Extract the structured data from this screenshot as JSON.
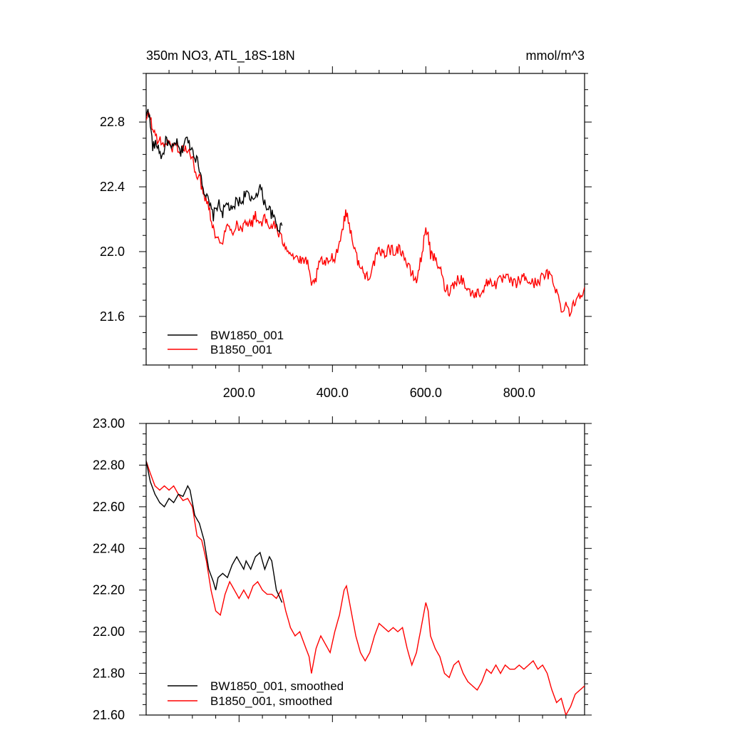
{
  "chart_data": [
    {
      "type": "line",
      "title_left": "350m NO3, ATL_18S-18N",
      "title_right": "mmol/m^3",
      "xlim": [
        1,
        940
      ],
      "ylim": [
        21.3,
        23.1
      ],
      "x_ticks": [
        200,
        400,
        600,
        800
      ],
      "x_tick_labels": [
        "200.0",
        "400.0",
        "600.0",
        "800.0"
      ],
      "y_ticks": [
        21.6,
        22.0,
        22.4,
        22.8
      ],
      "y_tick_labels": [
        "21.6",
        "22.0",
        "22.4",
        "22.8"
      ],
      "legend_position": "bottom-left",
      "noisy": true,
      "series": [
        {
          "name": "BW1850_001",
          "color": "#000000",
          "points": [
            [
              1,
              22.82
            ],
            [
              5,
              22.9
            ],
            [
              10,
              22.78
            ],
            [
              15,
              22.65
            ],
            [
              25,
              22.66
            ],
            [
              35,
              22.58
            ],
            [
              45,
              22.7
            ],
            [
              55,
              22.62
            ],
            [
              65,
              22.68
            ],
            [
              75,
              22.6
            ],
            [
              85,
              22.7
            ],
            [
              95,
              22.66
            ],
            [
              105,
              22.6
            ],
            [
              115,
              22.52
            ],
            [
              125,
              22.38
            ],
            [
              135,
              22.3
            ],
            [
              145,
              22.22
            ],
            [
              155,
              22.3
            ],
            [
              165,
              22.24
            ],
            [
              175,
              22.3
            ],
            [
              185,
              22.24
            ],
            [
              195,
              22.32
            ],
            [
              205,
              22.3
            ],
            [
              215,
              22.38
            ],
            [
              225,
              22.3
            ],
            [
              235,
              22.35
            ],
            [
              245,
              22.4
            ],
            [
              255,
              22.3
            ],
            [
              265,
              22.26
            ],
            [
              275,
              22.2
            ],
            [
              285,
              22.14
            ],
            [
              292,
              22.16
            ]
          ]
        },
        {
          "name": "B1850_001",
          "color": "#ff0000",
          "points": [
            [
              1,
              22.8
            ],
            [
              8,
              22.86
            ],
            [
              15,
              22.75
            ],
            [
              25,
              22.7
            ],
            [
              35,
              22.66
            ],
            [
              45,
              22.68
            ],
            [
              55,
              22.64
            ],
            [
              65,
              22.66
            ],
            [
              75,
              22.62
            ],
            [
              85,
              22.64
            ],
            [
              95,
              22.6
            ],
            [
              105,
              22.52
            ],
            [
              115,
              22.45
            ],
            [
              125,
              22.36
            ],
            [
              135,
              22.28
            ],
            [
              145,
              22.15
            ],
            [
              155,
              22.06
            ],
            [
              165,
              22.08
            ],
            [
              175,
              22.16
            ],
            [
              185,
              22.12
            ],
            [
              195,
              22.18
            ],
            [
              205,
              22.13
            ],
            [
              215,
              22.2
            ],
            [
              225,
              22.16
            ],
            [
              235,
              22.22
            ],
            [
              245,
              22.18
            ],
            [
              255,
              22.2
            ],
            [
              265,
              22.14
            ],
            [
              275,
              22.18
            ],
            [
              285,
              22.1
            ],
            [
              295,
              22.06
            ],
            [
              305,
              22.02
            ],
            [
              315,
              21.98
            ],
            [
              325,
              21.96
            ],
            [
              335,
              21.93
            ],
            [
              345,
              21.95
            ],
            [
              355,
              21.78
            ],
            [
              365,
              21.84
            ],
            [
              375,
              21.95
            ],
            [
              385,
              21.92
            ],
            [
              395,
              21.96
            ],
            [
              405,
              21.97
            ],
            [
              415,
              22.05
            ],
            [
              425,
              22.2
            ],
            [
              430,
              22.24
            ],
            [
              440,
              22.12
            ],
            [
              450,
              21.98
            ],
            [
              460,
              21.9
            ],
            [
              470,
              21.85
            ],
            [
              480,
              21.86
            ],
            [
              490,
              21.94
            ],
            [
              500,
              22.0
            ],
            [
              510,
              21.98
            ],
            [
              520,
              22.02
            ],
            [
              530,
              22.0
            ],
            [
              540,
              22.02
            ],
            [
              550,
              22.0
            ],
            [
              560,
              21.92
            ],
            [
              570,
              21.86
            ],
            [
              580,
              21.82
            ],
            [
              590,
              21.96
            ],
            [
              600,
              22.14
            ],
            [
              605,
              22.12
            ],
            [
              610,
              21.98
            ],
            [
              620,
              21.95
            ],
            [
              630,
              21.9
            ],
            [
              640,
              21.78
            ],
            [
              650,
              21.76
            ],
            [
              660,
              21.8
            ],
            [
              670,
              21.84
            ],
            [
              680,
              21.82
            ],
            [
              690,
              21.76
            ],
            [
              700,
              21.74
            ],
            [
              710,
              21.74
            ],
            [
              720,
              21.76
            ],
            [
              730,
              21.8
            ],
            [
              740,
              21.82
            ],
            [
              750,
              21.8
            ],
            [
              760,
              21.82
            ],
            [
              770,
              21.84
            ],
            [
              780,
              21.82
            ],
            [
              790,
              21.8
            ],
            [
              800,
              21.82
            ],
            [
              810,
              21.84
            ],
            [
              820,
              21.82
            ],
            [
              830,
              21.8
            ],
            [
              840,
              21.82
            ],
            [
              850,
              21.84
            ],
            [
              860,
              21.86
            ],
            [
              870,
              21.84
            ],
            [
              880,
              21.76
            ],
            [
              890,
              21.64
            ],
            [
              900,
              21.68
            ],
            [
              910,
              21.62
            ],
            [
              920,
              21.7
            ],
            [
              930,
              21.74
            ],
            [
              940,
              21.78
            ]
          ]
        }
      ]
    },
    {
      "type": "line",
      "title_left": "",
      "title_right": "",
      "xlim": [
        1,
        940
      ],
      "ylim": [
        21.6,
        23.0
      ],
      "x_ticks": [
        200,
        400,
        600,
        800
      ],
      "x_tick_labels": [
        "",
        "",
        "",
        ""
      ],
      "y_ticks": [
        21.6,
        21.8,
        22.0,
        22.2,
        22.4,
        22.6,
        22.8,
        23.0
      ],
      "y_tick_labels": [
        "21.60",
        "21.80",
        "22.00",
        "22.20",
        "22.40",
        "22.60",
        "22.80",
        "23.00"
      ],
      "legend_position": "bottom-left",
      "noisy": false,
      "series": [
        {
          "name": "BW1850_001, smoothed",
          "color": "#000000",
          "points": [
            [
              1,
              22.82
            ],
            [
              10,
              22.72
            ],
            [
              20,
              22.66
            ],
            [
              30,
              22.62
            ],
            [
              40,
              22.6
            ],
            [
              50,
              22.64
            ],
            [
              60,
              22.62
            ],
            [
              70,
              22.66
            ],
            [
              80,
              22.65
            ],
            [
              90,
              22.7
            ],
            [
              95,
              22.68
            ],
            [
              105,
              22.56
            ],
            [
              115,
              22.52
            ],
            [
              125,
              22.44
            ],
            [
              135,
              22.3
            ],
            [
              145,
              22.24
            ],
            [
              150,
              22.2
            ],
            [
              155,
              22.26
            ],
            [
              165,
              22.28
            ],
            [
              175,
              22.26
            ],
            [
              185,
              22.32
            ],
            [
              195,
              22.36
            ],
            [
              200,
              22.34
            ],
            [
              210,
              22.3
            ],
            [
              215,
              22.34
            ],
            [
              225,
              22.3
            ],
            [
              235,
              22.36
            ],
            [
              245,
              22.38
            ],
            [
              255,
              22.3
            ],
            [
              265,
              22.36
            ],
            [
              270,
              22.34
            ],
            [
              280,
              22.2
            ],
            [
              292,
              22.14
            ]
          ]
        },
        {
          "name": "B1850_001, smoothed",
          "color": "#ff0000",
          "points": [
            [
              1,
              22.82
            ],
            [
              10,
              22.76
            ],
            [
              20,
              22.7
            ],
            [
              30,
              22.68
            ],
            [
              40,
              22.7
            ],
            [
              50,
              22.68
            ],
            [
              60,
              22.7
            ],
            [
              70,
              22.66
            ],
            [
              80,
              22.63
            ],
            [
              90,
              22.64
            ],
            [
              100,
              22.6
            ],
            [
              110,
              22.46
            ],
            [
              120,
              22.44
            ],
            [
              130,
              22.34
            ],
            [
              140,
              22.2
            ],
            [
              150,
              22.1
            ],
            [
              160,
              22.08
            ],
            [
              170,
              22.18
            ],
            [
              180,
              22.24
            ],
            [
              190,
              22.2
            ],
            [
              200,
              22.16
            ],
            [
              210,
              22.2
            ],
            [
              220,
              22.16
            ],
            [
              230,
              22.22
            ],
            [
              240,
              22.24
            ],
            [
              250,
              22.2
            ],
            [
              260,
              22.18
            ],
            [
              270,
              22.18
            ],
            [
              280,
              22.16
            ],
            [
              290,
              22.2
            ],
            [
              300,
              22.1
            ],
            [
              310,
              22.02
            ],
            [
              320,
              21.98
            ],
            [
              330,
              22.0
            ],
            [
              340,
              21.94
            ],
            [
              350,
              21.88
            ],
            [
              355,
              21.8
            ],
            [
              365,
              21.92
            ],
            [
              375,
              21.98
            ],
            [
              385,
              21.94
            ],
            [
              395,
              21.9
            ],
            [
              405,
              22.0
            ],
            [
              415,
              22.08
            ],
            [
              425,
              22.2
            ],
            [
              430,
              22.22
            ],
            [
              440,
              22.1
            ],
            [
              450,
              21.98
            ],
            [
              460,
              21.9
            ],
            [
              470,
              21.86
            ],
            [
              480,
              21.9
            ],
            [
              490,
              21.98
            ],
            [
              500,
              22.04
            ],
            [
              510,
              22.02
            ],
            [
              520,
              22.0
            ],
            [
              530,
              22.02
            ],
            [
              540,
              22.0
            ],
            [
              550,
              22.02
            ],
            [
              560,
              21.92
            ],
            [
              570,
              21.84
            ],
            [
              580,
              21.9
            ],
            [
              590,
              22.02
            ],
            [
              600,
              22.14
            ],
            [
              605,
              22.1
            ],
            [
              610,
              21.98
            ],
            [
              620,
              21.92
            ],
            [
              630,
              21.88
            ],
            [
              640,
              21.8
            ],
            [
              650,
              21.78
            ],
            [
              660,
              21.84
            ],
            [
              670,
              21.86
            ],
            [
              680,
              21.8
            ],
            [
              690,
              21.76
            ],
            [
              700,
              21.74
            ],
            [
              710,
              21.72
            ],
            [
              720,
              21.76
            ],
            [
              730,
              21.82
            ],
            [
              740,
              21.8
            ],
            [
              750,
              21.84
            ],
            [
              760,
              21.8
            ],
            [
              770,
              21.84
            ],
            [
              780,
              21.82
            ],
            [
              790,
              21.82
            ],
            [
              800,
              21.84
            ],
            [
              810,
              21.82
            ],
            [
              820,
              21.84
            ],
            [
              830,
              21.86
            ],
            [
              840,
              21.82
            ],
            [
              850,
              21.84
            ],
            [
              860,
              21.8
            ],
            [
              870,
              21.72
            ],
            [
              880,
              21.66
            ],
            [
              890,
              21.68
            ],
            [
              900,
              21.6
            ],
            [
              910,
              21.64
            ],
            [
              920,
              21.7
            ],
            [
              930,
              21.72
            ],
            [
              940,
              21.74
            ]
          ]
        }
      ]
    }
  ]
}
